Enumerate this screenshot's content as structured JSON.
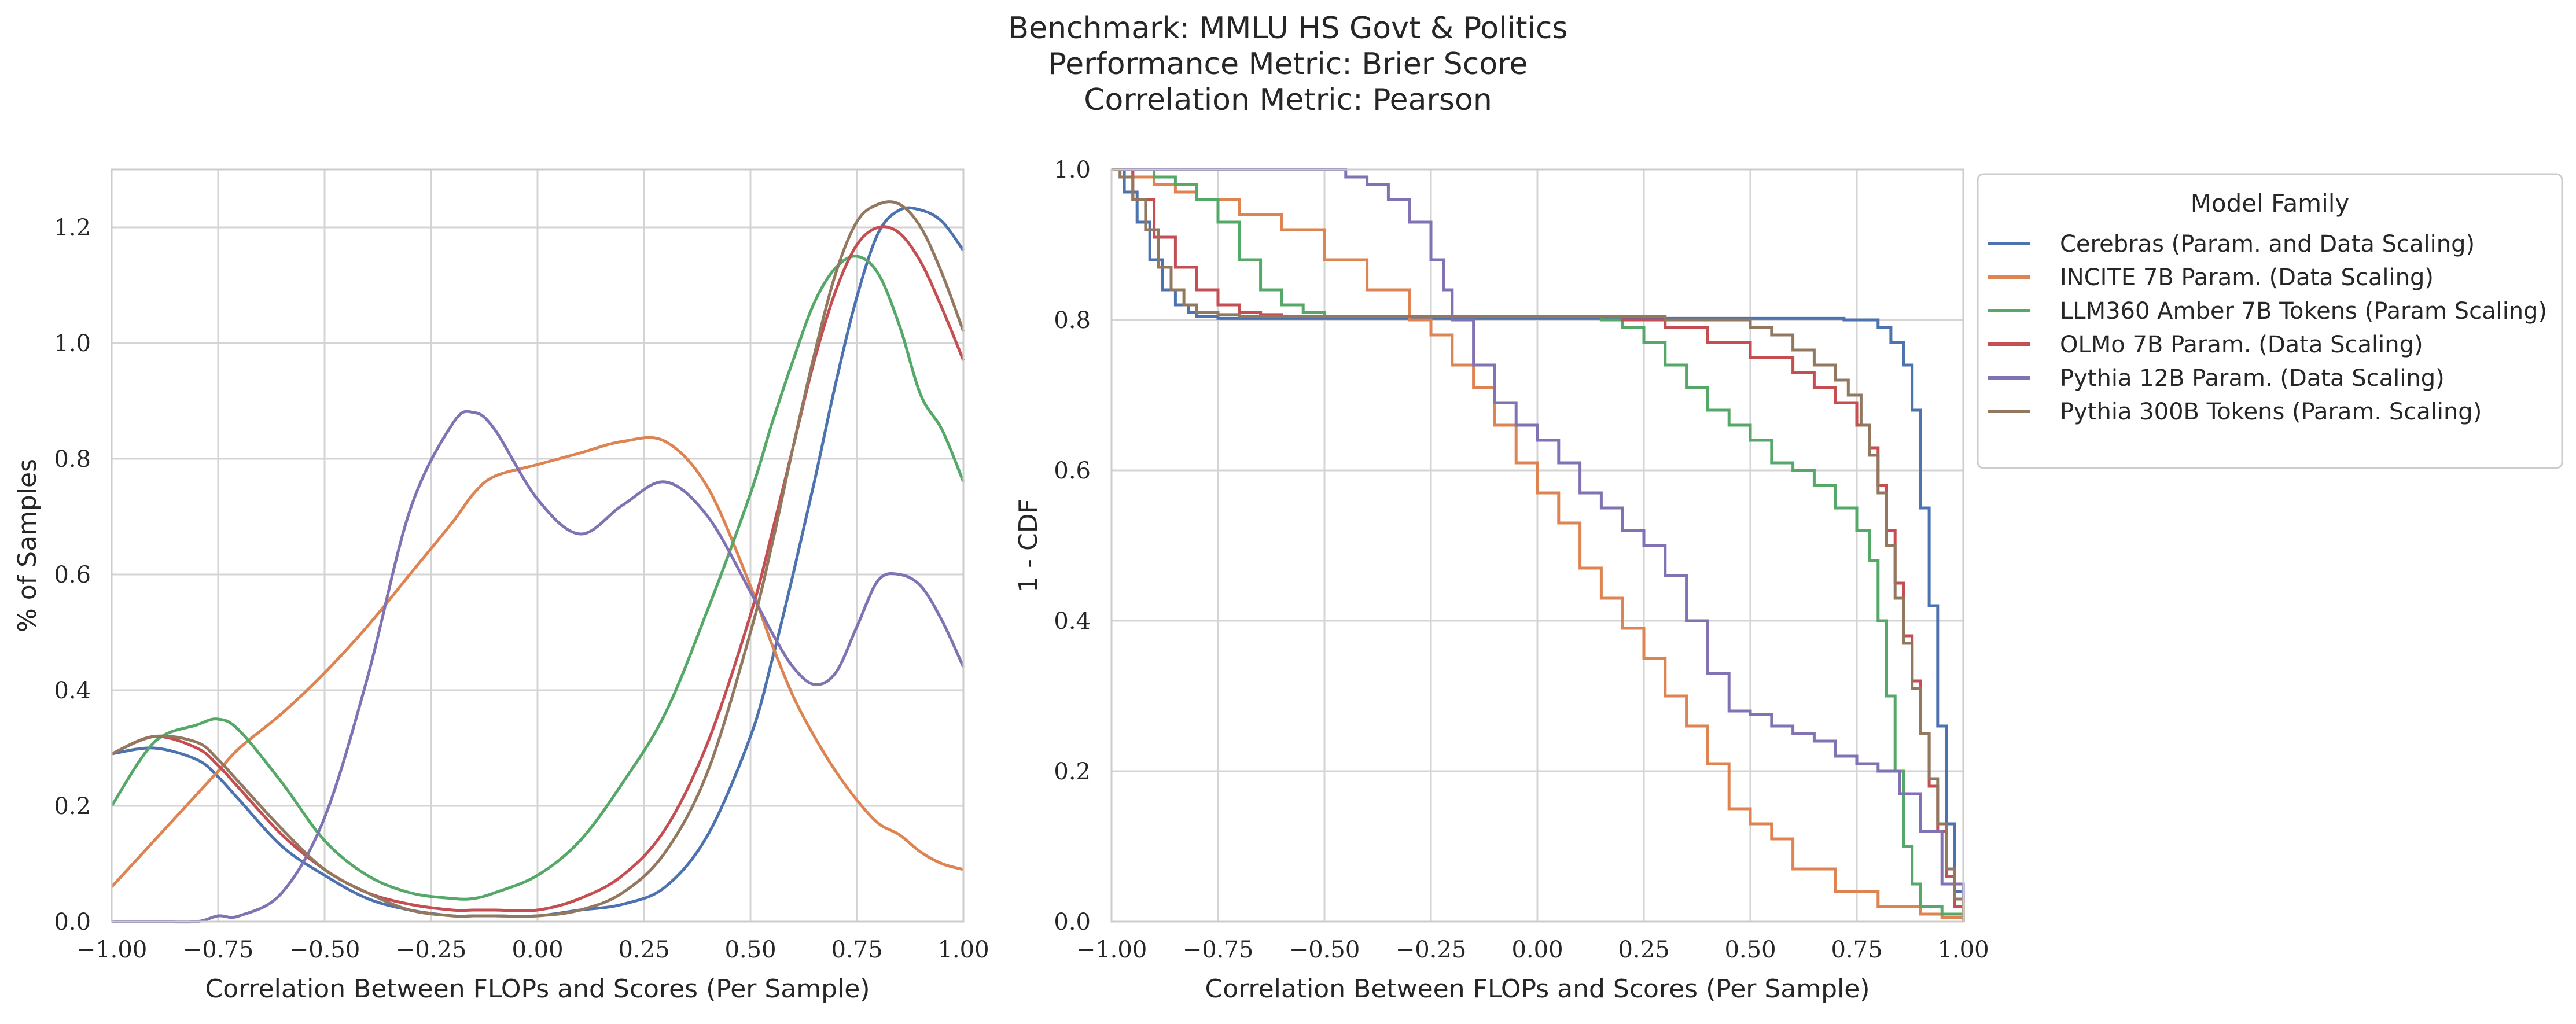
{
  "title_lines": [
    "Benchmark: MMLU HS Govt & Politics",
    "Performance Metric: Brier Score",
    "Correlation Metric: Pearson"
  ],
  "colors": {
    "Cerebras (Param. and Data Scaling)": "#4c72b0",
    "INCITE 7B Param. (Data Scaling)": "#dd8452",
    "LLM360 Amber 7B Tokens (Param Scaling)": "#55a868",
    "OLMo 7B Param. (Data Scaling)": "#c44e52",
    "Pythia 12B Param. (Data Scaling)": "#8172b3",
    "Pythia 300B Tokens (Param. Scaling)": "#937860"
  },
  "legend": {
    "title": "Model Family",
    "entries": [
      "Cerebras (Param. and Data Scaling)",
      "INCITE 7B Param. (Data Scaling)",
      "LLM360 Amber 7B Tokens (Param Scaling)",
      "OLMo 7B Param. (Data Scaling)",
      "Pythia 12B Param. (Data Scaling)",
      "Pythia 300B Tokens (Param. Scaling)"
    ]
  },
  "chart_data": [
    {
      "type": "line",
      "kind": "kde",
      "xlabel": "Correlation Between FLOPs and Scores (Per Sample)",
      "ylabel": "% of Samples",
      "xlim": [
        -1.0,
        1.0
      ],
      "ylim": [
        0.0,
        1.3
      ],
      "xticks": [
        "−1.00",
        "−0.75",
        "−0.50",
        "−0.25",
        "0.00",
        "0.25",
        "0.50",
        "0.75",
        "1.00"
      ],
      "yticks": [
        "0.0",
        "0.2",
        "0.4",
        "0.6",
        "0.8",
        "1.0",
        "1.2"
      ],
      "grid": true,
      "x": [
        -1.0,
        -0.9,
        -0.8,
        -0.75,
        -0.7,
        -0.6,
        -0.5,
        -0.4,
        -0.3,
        -0.2,
        -0.15,
        -0.1,
        0.0,
        0.1,
        0.2,
        0.3,
        0.4,
        0.5,
        0.55,
        0.6,
        0.65,
        0.7,
        0.75,
        0.8,
        0.85,
        0.9,
        0.95,
        1.0
      ],
      "series": [
        {
          "name": "Cerebras (Param. and Data Scaling)",
          "values": [
            0.29,
            0.3,
            0.28,
            0.25,
            0.21,
            0.13,
            0.08,
            0.04,
            0.02,
            0.01,
            0.01,
            0.01,
            0.01,
            0.02,
            0.03,
            0.06,
            0.15,
            0.32,
            0.45,
            0.6,
            0.76,
            0.93,
            1.08,
            1.19,
            1.23,
            1.23,
            1.21,
            1.16
          ]
        },
        {
          "name": "INCITE 7B Param. (Data Scaling)",
          "values": [
            0.06,
            0.14,
            0.22,
            0.26,
            0.3,
            0.36,
            0.43,
            0.51,
            0.6,
            0.69,
            0.74,
            0.77,
            0.79,
            0.81,
            0.83,
            0.83,
            0.75,
            0.58,
            0.48,
            0.39,
            0.32,
            0.26,
            0.21,
            0.17,
            0.15,
            0.12,
            0.1,
            0.09
          ]
        },
        {
          "name": "LLM360 Amber 7B Tokens (Param Scaling)",
          "values": [
            0.2,
            0.31,
            0.34,
            0.35,
            0.33,
            0.24,
            0.14,
            0.08,
            0.05,
            0.04,
            0.04,
            0.05,
            0.08,
            0.14,
            0.24,
            0.36,
            0.54,
            0.74,
            0.86,
            0.97,
            1.07,
            1.13,
            1.15,
            1.12,
            1.03,
            0.91,
            0.85,
            0.76
          ]
        },
        {
          "name": "OLMo 7B Param. (Data Scaling)",
          "values": [
            0.29,
            0.32,
            0.3,
            0.27,
            0.23,
            0.15,
            0.09,
            0.05,
            0.03,
            0.02,
            0.02,
            0.02,
            0.02,
            0.04,
            0.08,
            0.16,
            0.31,
            0.53,
            0.67,
            0.82,
            0.97,
            1.09,
            1.17,
            1.2,
            1.19,
            1.14,
            1.06,
            0.97
          ]
        },
        {
          "name": "Pythia 12B Param. (Data Scaling)",
          "values": [
            0.0,
            0.0,
            0.0,
            0.01,
            0.01,
            0.05,
            0.18,
            0.42,
            0.71,
            0.86,
            0.88,
            0.85,
            0.73,
            0.67,
            0.72,
            0.76,
            0.7,
            0.57,
            0.5,
            0.44,
            0.41,
            0.43,
            0.51,
            0.59,
            0.6,
            0.58,
            0.52,
            0.44
          ]
        },
        {
          "name": "Pythia 300B Tokens (Param. Scaling)",
          "values": [
            0.29,
            0.32,
            0.31,
            0.28,
            0.24,
            0.16,
            0.09,
            0.05,
            0.02,
            0.01,
            0.01,
            0.01,
            0.01,
            0.02,
            0.05,
            0.12,
            0.26,
            0.5,
            0.65,
            0.82,
            0.98,
            1.12,
            1.21,
            1.24,
            1.24,
            1.2,
            1.12,
            1.02
          ]
        }
      ]
    },
    {
      "type": "line",
      "kind": "step",
      "xlabel": "Correlation Between FLOPs and Scores (Per Sample)",
      "ylabel": "1 - CDF",
      "xlim": [
        -1.0,
        1.0
      ],
      "ylim": [
        0.0,
        1.0
      ],
      "xticks": [
        "−1.00",
        "−0.75",
        "−0.50",
        "−0.25",
        "0.00",
        "0.25",
        "0.50",
        "0.75",
        "1.00"
      ],
      "yticks": [
        "0.0",
        "0.2",
        "0.4",
        "0.6",
        "0.8",
        "1.0"
      ],
      "grid": true,
      "series": [
        {
          "name": "Cerebras (Param. and Data Scaling)",
          "x": [
            -1.0,
            -0.97,
            -0.94,
            -0.91,
            -0.88,
            -0.85,
            -0.82,
            -0.8,
            -0.75,
            0.0,
            0.5,
            0.72,
            0.76,
            0.8,
            0.83,
            0.86,
            0.88,
            0.9,
            0.92,
            0.94,
            0.96,
            0.98,
            1.0
          ],
          "y": [
            1.0,
            0.97,
            0.93,
            0.88,
            0.84,
            0.82,
            0.81,
            0.805,
            0.802,
            0.802,
            0.802,
            0.8,
            0.8,
            0.79,
            0.77,
            0.74,
            0.68,
            0.55,
            0.42,
            0.26,
            0.13,
            0.04,
            0.0
          ]
        },
        {
          "name": "INCITE 7B Param. (Data Scaling)",
          "x": [
            -1.0,
            -0.95,
            -0.9,
            -0.85,
            -0.8,
            -0.7,
            -0.6,
            -0.5,
            -0.4,
            -0.3,
            -0.25,
            -0.2,
            -0.15,
            -0.1,
            -0.05,
            0.0,
            0.05,
            0.1,
            0.15,
            0.2,
            0.25,
            0.3,
            0.35,
            0.4,
            0.45,
            0.5,
            0.55,
            0.6,
            0.7,
            0.8,
            0.9,
            0.95,
            1.0
          ],
          "y": [
            1.0,
            0.99,
            0.98,
            0.97,
            0.96,
            0.94,
            0.92,
            0.88,
            0.84,
            0.8,
            0.78,
            0.74,
            0.71,
            0.66,
            0.61,
            0.57,
            0.53,
            0.47,
            0.43,
            0.39,
            0.35,
            0.3,
            0.26,
            0.21,
            0.15,
            0.13,
            0.11,
            0.07,
            0.04,
            0.02,
            0.01,
            0.005,
            0.0
          ]
        },
        {
          "name": "LLM360 Amber 7B Tokens (Param Scaling)",
          "x": [
            -1.0,
            -0.9,
            -0.85,
            -0.8,
            -0.75,
            -0.7,
            -0.65,
            -0.6,
            -0.55,
            -0.5,
            0.0,
            0.1,
            0.15,
            0.2,
            0.25,
            0.3,
            0.35,
            0.4,
            0.45,
            0.5,
            0.55,
            0.6,
            0.65,
            0.7,
            0.75,
            0.78,
            0.8,
            0.82,
            0.84,
            0.86,
            0.88,
            0.9,
            0.95,
            1.0
          ],
          "y": [
            1.0,
            0.99,
            0.98,
            0.96,
            0.93,
            0.88,
            0.84,
            0.82,
            0.81,
            0.805,
            0.805,
            0.805,
            0.8,
            0.79,
            0.77,
            0.74,
            0.71,
            0.68,
            0.66,
            0.64,
            0.61,
            0.6,
            0.58,
            0.55,
            0.52,
            0.48,
            0.4,
            0.3,
            0.2,
            0.1,
            0.05,
            0.02,
            0.01,
            0.0
          ]
        },
        {
          "name": "OLMo 7B Param. (Data Scaling)",
          "x": [
            -1.0,
            -0.95,
            -0.9,
            -0.85,
            -0.8,
            -0.75,
            -0.7,
            -0.65,
            -0.6,
            -0.55,
            0.0,
            0.2,
            0.3,
            0.4,
            0.5,
            0.6,
            0.65,
            0.7,
            0.75,
            0.78,
            0.8,
            0.82,
            0.84,
            0.86,
            0.88,
            0.9,
            0.92,
            0.94,
            0.96,
            0.98,
            1.0
          ],
          "y": [
            1.0,
            0.96,
            0.91,
            0.87,
            0.84,
            0.82,
            0.81,
            0.807,
            0.805,
            0.805,
            0.805,
            0.8,
            0.79,
            0.77,
            0.75,
            0.73,
            0.71,
            0.69,
            0.66,
            0.63,
            0.58,
            0.52,
            0.45,
            0.38,
            0.32,
            0.25,
            0.18,
            0.12,
            0.06,
            0.02,
            0.0
          ]
        },
        {
          "name": "Pythia 12B Param. (Data Scaling)",
          "x": [
            -1.0,
            -0.5,
            -0.45,
            -0.4,
            -0.35,
            -0.3,
            -0.25,
            -0.22,
            -0.2,
            -0.15,
            -0.1,
            -0.05,
            0.0,
            0.05,
            0.1,
            0.15,
            0.2,
            0.25,
            0.3,
            0.35,
            0.4,
            0.45,
            0.5,
            0.55,
            0.6,
            0.65,
            0.7,
            0.75,
            0.8,
            0.85,
            0.9,
            0.95,
            1.0
          ],
          "y": [
            1.0,
            1.0,
            0.99,
            0.98,
            0.96,
            0.93,
            0.88,
            0.84,
            0.8,
            0.74,
            0.69,
            0.66,
            0.64,
            0.61,
            0.57,
            0.55,
            0.52,
            0.5,
            0.46,
            0.4,
            0.33,
            0.28,
            0.275,
            0.26,
            0.25,
            0.24,
            0.22,
            0.21,
            0.2,
            0.17,
            0.12,
            0.05,
            0.0
          ]
        },
        {
          "name": "Pythia 300B Tokens (Param. Scaling)",
          "x": [
            -1.0,
            -0.98,
            -0.95,
            -0.92,
            -0.89,
            -0.86,
            -0.83,
            -0.8,
            -0.75,
            -0.7,
            -0.6,
            0.0,
            0.3,
            0.5,
            0.55,
            0.6,
            0.65,
            0.7,
            0.73,
            0.76,
            0.78,
            0.8,
            0.82,
            0.84,
            0.86,
            0.88,
            0.9,
            0.92,
            0.94,
            0.96,
            0.98,
            1.0
          ],
          "y": [
            1.0,
            0.99,
            0.96,
            0.92,
            0.87,
            0.84,
            0.82,
            0.81,
            0.807,
            0.805,
            0.805,
            0.805,
            0.8,
            0.79,
            0.78,
            0.76,
            0.74,
            0.72,
            0.7,
            0.66,
            0.62,
            0.57,
            0.5,
            0.43,
            0.37,
            0.31,
            0.25,
            0.19,
            0.13,
            0.07,
            0.03,
            0.0
          ]
        }
      ]
    }
  ]
}
